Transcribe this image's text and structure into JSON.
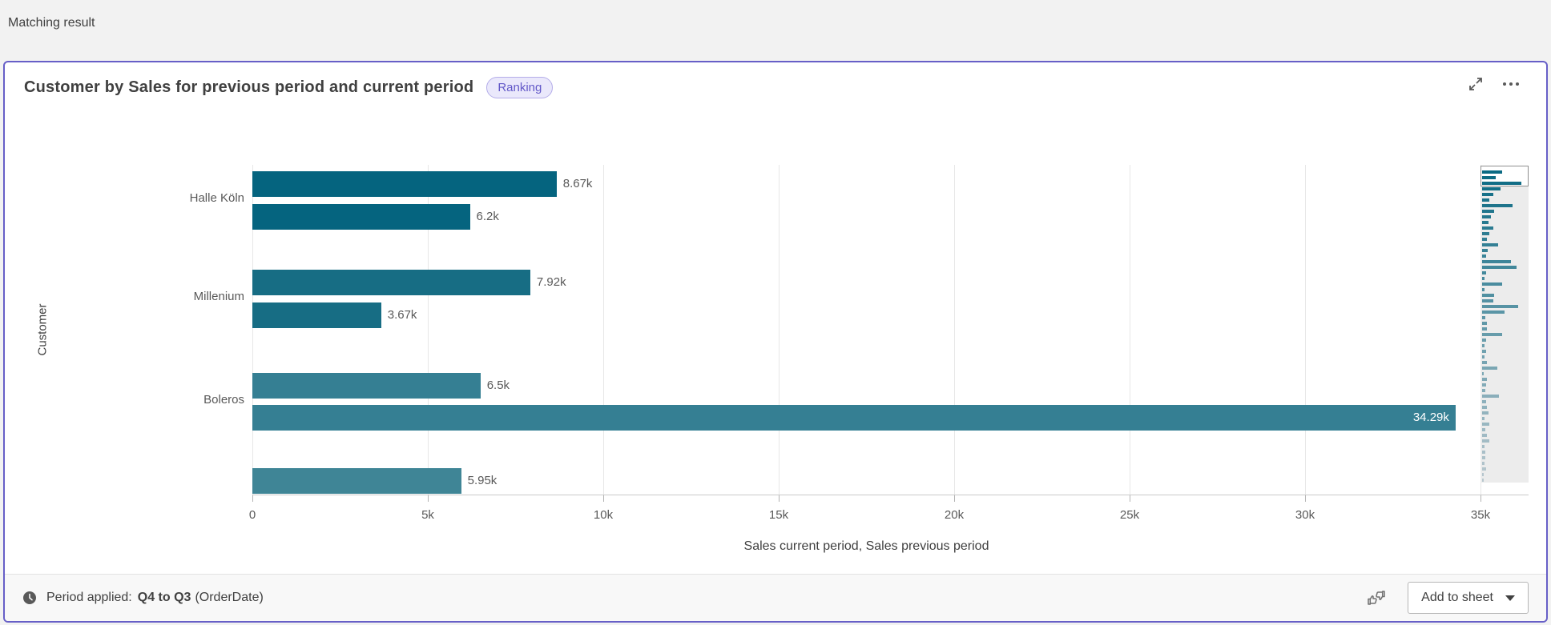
{
  "page": {
    "header": "Matching result"
  },
  "card": {
    "title": "Customer by Sales for previous period and current period",
    "badge": "Ranking",
    "accent_color": "#675fc7"
  },
  "chart_data": {
    "type": "bar",
    "orientation": "horizontal",
    "title": "Customer by Sales for previous period and current period",
    "ylabel": "Customer",
    "xlabel": "Sales current period, Sales previous period",
    "xlim": [
      0,
      35000
    ],
    "grid": true,
    "legend": false,
    "categories": [
      "Halle Köln",
      "Millenium",
      "Boleros",
      ""
    ],
    "series": [
      {
        "name": "Sales current period",
        "values": [
          8670,
          7920,
          6500,
          5950
        ]
      },
      {
        "name": "Sales previous period",
        "values": [
          6200,
          3670,
          34290,
          null
        ]
      }
    ],
    "value_labels": [
      [
        "8.67k",
        "7.92k",
        "6.5k",
        "5.95k"
      ],
      [
        "6.2k",
        "3.67k",
        "34.29k",
        null
      ]
    ],
    "category_colors": [
      "#05647f",
      "#176d84",
      "#357f93",
      "#3f8596"
    ],
    "xticks": {
      "values": [
        0,
        5000,
        10000,
        15000,
        20000,
        25000,
        30000,
        35000
      ],
      "labels": [
        "0",
        "5k",
        "10k",
        "15k",
        "20k",
        "25k",
        "30k",
        "35k"
      ]
    }
  },
  "minimap": {
    "color_start": "#0b6a83",
    "color_end": "#b9c8cf",
    "bar_widths": [
      0.5,
      0.33,
      0.97,
      0.45,
      0.28,
      0.18,
      0.75,
      0.3,
      0.22,
      0.15,
      0.28,
      0.18,
      0.12,
      0.4,
      0.14,
      0.1,
      0.72,
      0.85,
      0.1,
      0.06,
      0.5,
      0.05,
      0.3,
      0.28,
      0.9,
      0.55,
      0.08,
      0.12,
      0.12,
      0.5,
      0.1,
      0.06,
      0.1,
      0.05,
      0.12,
      0.38,
      0.04,
      0.12,
      0.1,
      0.08,
      0.42,
      0.1,
      0.12,
      0.15,
      0.06,
      0.18,
      0.08,
      0.12,
      0.18,
      0.06,
      0.08,
      0.08,
      0.05,
      0.1,
      0.03,
      0.04
    ]
  },
  "footer": {
    "period_prefix": "Period applied:",
    "period_value": "Q4 to Q3",
    "period_suffix": "(OrderDate)",
    "add_to_sheet": "Add to sheet"
  }
}
